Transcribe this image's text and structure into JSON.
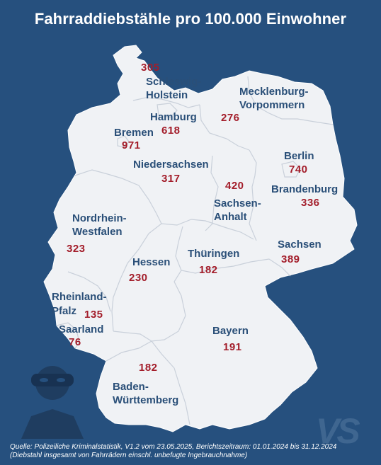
{
  "title": "Fahrraddiebstähle pro 100.000 Einwohner",
  "source": {
    "line1": "Quelle: Polizeiliche Kriminalstatistik, V1.2 vom 23.05.2025, Berichtszeitraum: 01.01.2024 bis 31.12.2024",
    "line2": "(Diebstahl insgesamt von Fahrrädern einschl. unbefugte Ingebrauchnahme)"
  },
  "logo_text": "VS",
  "colors": {
    "background": "#26507e",
    "land": "#f0f2f5",
    "label": "#2a4f78",
    "value": "#a31d2a"
  },
  "icons": [
    "thief-icon"
  ],
  "states": [
    {
      "id": "schleswig-holstein",
      "name_lines": [
        "Schleswig-",
        "Holstein"
      ],
      "value": "305"
    },
    {
      "id": "mecklenburg-vorpommern",
      "name_lines": [
        "Mecklenburg-",
        "Vorpommern"
      ],
      "value": "276"
    },
    {
      "id": "hamburg",
      "name_lines": [
        "Hamburg"
      ],
      "value": "618"
    },
    {
      "id": "bremen",
      "name_lines": [
        "Bremen"
      ],
      "value": "971"
    },
    {
      "id": "niedersachsen",
      "name_lines": [
        "Niedersachsen"
      ],
      "value": "317"
    },
    {
      "id": "berlin",
      "name_lines": [
        "Berlin"
      ],
      "value": "740"
    },
    {
      "id": "brandenburg",
      "name_lines": [
        "Brandenburg"
      ],
      "value": "336"
    },
    {
      "id": "sachsen-anhalt",
      "name_lines": [
        "Sachsen-",
        "Anhalt"
      ],
      "value": "420"
    },
    {
      "id": "nordrhein-westfalen",
      "name_lines": [
        "Nordrhein-",
        "Westfalen"
      ],
      "value": "323"
    },
    {
      "id": "sachsen",
      "name_lines": [
        "Sachsen"
      ],
      "value": "389"
    },
    {
      "id": "thueringen",
      "name_lines": [
        "Thüringen"
      ],
      "value": "182"
    },
    {
      "id": "hessen",
      "name_lines": [
        "Hessen"
      ],
      "value": "230"
    },
    {
      "id": "rheinland-pfalz",
      "name_lines": [
        "Rheinland-",
        "Pfalz"
      ],
      "value": "135"
    },
    {
      "id": "saarland",
      "name_lines": [
        "Saarland"
      ],
      "value": "76"
    },
    {
      "id": "bayern",
      "name_lines": [
        "Bayern"
      ],
      "value": "191"
    },
    {
      "id": "baden-wuerttemberg",
      "name_lines": [
        "Baden-",
        "Württemberg"
      ],
      "value": "182"
    }
  ]
}
